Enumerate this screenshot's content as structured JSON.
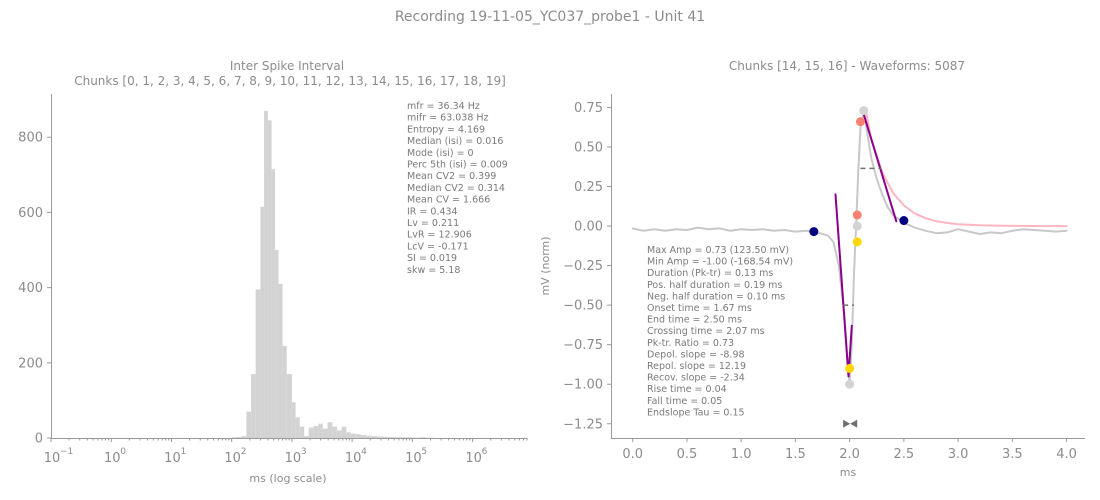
{
  "figure": {
    "suptitle": "Recording 19-11-05_YC037_probe1 - Unit 41"
  },
  "colors": {
    "text": "#8c8c8c",
    "hist_bar": "#d3d3d3",
    "waveform": "#c8c8c8",
    "fit_curve": "#ffb6c1",
    "slope_line": "#8b008b",
    "peak_marker": "#fa8072",
    "trough_marker": "#ffd700",
    "onset_marker": "#000080",
    "pale_marker": "#d3d3d3",
    "duration_marker": "#707070"
  },
  "chart_data": [
    {
      "type": "bar",
      "title": "Inter Spike Interval",
      "subtitle": "Chunks [0, 1, 2, 3, 4, 5, 6, 7, 8, 9, 10, 11, 12, 13, 14, 15, 16, 17, 18, 19]",
      "xlabel": "ms (log scale)",
      "ylabel": "",
      "x_scale": "log",
      "xlim": [
        0.1,
        8000000
      ],
      "ylim": [
        0,
        915
      ],
      "x_ticks": [
        0.1,
        1,
        10,
        100,
        1000,
        10000,
        100000,
        1000000
      ],
      "x_tick_labels": [
        {
          "base": "10",
          "exp": "−1"
        },
        {
          "base": "10",
          "exp": "0"
        },
        {
          "base": "10",
          "exp": "1"
        },
        {
          "base": "10",
          "exp": "2"
        },
        {
          "base": "10",
          "exp": "3"
        },
        {
          "base": "10",
          "exp": "4"
        },
        {
          "base": "10",
          "exp": "5"
        },
        {
          "base": "10",
          "exp": "6"
        }
      ],
      "y_ticks": [
        0,
        200,
        400,
        600,
        800
      ],
      "y_tick_labels": [
        "0",
        "200",
        "400",
        "600",
        "800"
      ],
      "bins": [
        {
          "x0": 100,
          "x1": 120,
          "v": 2
        },
        {
          "x0": 120,
          "x1": 145,
          "v": 3
        },
        {
          "x0": 145,
          "x1": 175,
          "v": 5
        },
        {
          "x0": 175,
          "x1": 210,
          "v": 70
        },
        {
          "x0": 210,
          "x1": 250,
          "v": 170
        },
        {
          "x0": 250,
          "x1": 300,
          "v": 395
        },
        {
          "x0": 300,
          "x1": 345,
          "v": 615
        },
        {
          "x0": 345,
          "x1": 400,
          "v": 870
        },
        {
          "x0": 400,
          "x1": 460,
          "v": 845
        },
        {
          "x0": 460,
          "x1": 525,
          "v": 715
        },
        {
          "x0": 525,
          "x1": 600,
          "v": 500
        },
        {
          "x0": 600,
          "x1": 700,
          "v": 410
        },
        {
          "x0": 700,
          "x1": 820,
          "v": 245
        },
        {
          "x0": 820,
          "x1": 1000,
          "v": 170
        },
        {
          "x0": 1000,
          "x1": 1150,
          "v": 95
        },
        {
          "x0": 1150,
          "x1": 1350,
          "v": 55
        },
        {
          "x0": 1350,
          "x1": 1600,
          "v": 30
        },
        {
          "x0": 1600,
          "x1": 1900,
          "v": 5
        },
        {
          "x0": 1900,
          "x1": 2300,
          "v": 28
        },
        {
          "x0": 2300,
          "x1": 2750,
          "v": 32
        },
        {
          "x0": 2750,
          "x1": 3250,
          "v": 38
        },
        {
          "x0": 3250,
          "x1": 3900,
          "v": 25
        },
        {
          "x0": 3900,
          "x1": 4700,
          "v": 42
        },
        {
          "x0": 4700,
          "x1": 5600,
          "v": 30
        },
        {
          "x0": 5600,
          "x1": 6700,
          "v": 20
        },
        {
          "x0": 6700,
          "x1": 8000,
          "v": 30
        },
        {
          "x0": 8000,
          "x1": 9500,
          "v": 15
        },
        {
          "x0": 9500,
          "x1": 11500,
          "v": 12
        },
        {
          "x0": 11500,
          "x1": 14000,
          "v": 10
        },
        {
          "x0": 14000,
          "x1": 17000,
          "v": 8
        },
        {
          "x0": 17000,
          "x1": 21000,
          "v": 6
        },
        {
          "x0": 21000,
          "x1": 26000,
          "v": 5
        },
        {
          "x0": 26000,
          "x1": 32000,
          "v": 4
        },
        {
          "x0": 32000,
          "x1": 40000,
          "v": 3
        },
        {
          "x0": 40000,
          "x1": 50000,
          "v": 3
        },
        {
          "x0": 50000,
          "x1": 62000,
          "v": 2
        },
        {
          "x0": 62000,
          "x1": 80000,
          "v": 2
        },
        {
          "x0": 80000,
          "x1": 100000,
          "v": 2
        },
        {
          "x0": 100000,
          "x1": 130000,
          "v": 1
        },
        {
          "x0": 130000,
          "x1": 170000,
          "v": 2
        },
        {
          "x0": 170000,
          "x1": 220000,
          "v": 1
        }
      ],
      "stats_text": [
        "mfr = 36.34 Hz",
        "mifr = 63.038 Hz",
        "Entropy = 4.169",
        "Median (isi) = 0.016",
        "Mode (isi) = 0",
        "Perc 5th (isi) = 0.009",
        "Mean CV2 = 0.399",
        "Median CV2 = 0.314",
        "Mean CV = 1.666",
        "IR = 0.434",
        "Lv = 0.211",
        "LvR = 12.906",
        "LcV = -0.171",
        "SI = 0.019",
        "skw = 5.18"
      ],
      "legend": "none",
      "grid": false
    },
    {
      "type": "line",
      "title": "Chunks [14, 15, 16] - Waveforms: 5087",
      "xlabel": "ms",
      "ylabel": "mV (norm)",
      "xlim": [
        -0.2,
        4.17
      ],
      "ylim": [
        -1.34,
        0.835
      ],
      "x_ticks": [
        0,
        0.5,
        1,
        1.5,
        2,
        2.5,
        3,
        3.5,
        4
      ],
      "x_tick_labels": [
        "0.0",
        "0.5",
        "1.0",
        "1.5",
        "2.0",
        "2.5",
        "3.0",
        "3.5",
        "4.0"
      ],
      "y_ticks": [
        0.75,
        0.5,
        0.25,
        0,
        -0.25,
        -0.5,
        -0.75,
        -1,
        -1.25
      ],
      "y_tick_labels": [
        "0.75",
        "0.50",
        "0.25",
        "0.00",
        "−0.25",
        "−0.50",
        "−0.75",
        "−1.00",
        "−1.25"
      ],
      "series": [
        {
          "role": "waveform",
          "x": [
            0,
            0.1,
            0.2,
            0.3,
            0.4,
            0.5,
            0.6,
            0.7,
            0.8,
            0.9,
            1.0,
            1.1,
            1.2,
            1.3,
            1.4,
            1.5,
            1.6,
            1.7,
            1.8,
            1.85,
            1.9,
            1.95,
            1.98,
            2.0,
            2.02,
            2.04,
            2.06,
            2.08,
            2.1,
            2.13,
            2.16,
            2.2,
            2.25,
            2.3,
            2.35,
            2.4,
            2.5,
            2.6,
            2.7,
            2.8,
            2.9,
            3.0,
            3.1,
            3.2,
            3.3,
            3.4,
            3.5,
            3.6,
            3.7,
            3.8,
            3.9,
            4.0
          ],
          "y": [
            -0.015,
            -0.03,
            -0.02,
            -0.03,
            -0.02,
            -0.025,
            -0.01,
            -0.02,
            -0.015,
            -0.03,
            -0.02,
            -0.025,
            -0.02,
            -0.03,
            -0.025,
            -0.035,
            -0.03,
            -0.04,
            -0.06,
            -0.1,
            -0.25,
            -0.55,
            -0.85,
            -1.0,
            -0.75,
            -0.3,
            0.0,
            0.35,
            0.62,
            0.73,
            0.6,
            0.43,
            0.3,
            0.2,
            0.12,
            0.07,
            0.02,
            -0.01,
            -0.03,
            -0.045,
            -0.04,
            -0.02,
            -0.035,
            -0.05,
            -0.04,
            -0.045,
            -0.03,
            -0.02,
            -0.025,
            -0.03,
            -0.035,
            -0.03
          ]
        },
        {
          "role": "fit",
          "x": [
            2.15,
            2.2,
            2.3,
            2.4,
            2.5,
            2.6,
            2.7,
            2.8,
            2.9,
            3.0,
            3.2,
            3.4,
            3.6,
            3.8,
            4.0
          ],
          "y": [
            0.73,
            0.55,
            0.34,
            0.21,
            0.13,
            0.08,
            0.05,
            0.03,
            0.02,
            0.012,
            0.005,
            0.002,
            0.001,
            0.0,
            0.0
          ]
        },
        {
          "role": "slope",
          "x": [
            1.87,
            1.99
          ],
          "y": [
            0.2,
            -0.95
          ]
        },
        {
          "role": "slope",
          "x": [
            1.99,
            2.02
          ],
          "y": [
            -0.95,
            -0.63
          ]
        },
        {
          "role": "slope",
          "x": [
            2.12,
            2.43
          ],
          "y": [
            0.73,
            0.03
          ]
        }
      ],
      "markers": [
        {
          "x": 1.67,
          "y": -0.035,
          "role": "onset"
        },
        {
          "x": 2.5,
          "y": 0.035,
          "role": "onset"
        },
        {
          "x": 2.1,
          "y": 0.66,
          "role": "peak"
        },
        {
          "x": 2.07,
          "y": 0.07,
          "role": "peak"
        },
        {
          "x": 2.07,
          "y": -0.1,
          "role": "trough"
        },
        {
          "x": 2.0,
          "y": -0.9,
          "role": "trough"
        },
        {
          "x": 2.07,
          "y": 0.0,
          "role": "pale"
        },
        {
          "x": 2.0,
          "y": -1.0,
          "role": "pale"
        },
        {
          "x": 2.13,
          "y": 0.73,
          "role": "pale"
        }
      ],
      "half_width_marks": [
        {
          "x0": 2.1,
          "x1": 2.29,
          "y": 0.365
        },
        {
          "x0": 1.94,
          "x1": 2.04,
          "y": -0.5
        }
      ],
      "duration_marker": {
        "x0": 1.94,
        "x1": 2.07,
        "y": -1.25
      },
      "stats_text": [
        "Max Amp = 0.73 (123.50 mV)",
        "Min Amp = -1.00 (-168.54 mV)",
        "Duration (Pk-tr) = 0.13 ms",
        "Pos. half duration = 0.19 ms",
        "Neg. half duration = 0.10 ms",
        "Onset time = 1.67 ms",
        "End time = 2.50 ms",
        "Crossing time = 2.07 ms",
        "Pk-tr. Ratio = 0.73",
        "Depol. slope = -8.98",
        "Repol. slope = 12.19",
        "Recov. slope = -2.34",
        "Rise time = 0.04",
        "Fall time = 0.05",
        "Endslope Tau = 0.15"
      ],
      "legend": "none",
      "grid": false
    }
  ]
}
